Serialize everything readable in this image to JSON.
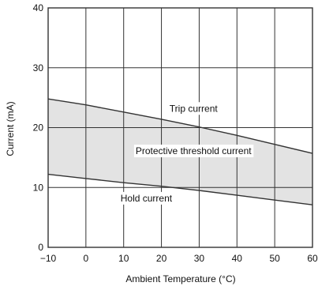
{
  "chart_data": {
    "type": "area",
    "title": "",
    "xlabel": "Ambient Temperature (°C)",
    "ylabel": "Current (mA)",
    "xlim": [
      -10,
      60
    ],
    "ylim": [
      0,
      40
    ],
    "x_ticks": [
      -10,
      0,
      10,
      20,
      30,
      40,
      50,
      60
    ],
    "x_tick_labels": [
      "−10",
      "0",
      "10",
      "20",
      "30",
      "40",
      "50",
      "60"
    ],
    "y_ticks": [
      0,
      10,
      20,
      30,
      40
    ],
    "y_tick_labels": [
      "0",
      "10",
      "20",
      "30",
      "40"
    ],
    "grid": true,
    "series": [
      {
        "name": "Trip current",
        "x": [
          -10,
          0,
          10,
          20,
          30,
          40,
          50,
          60
        ],
        "values": [
          24.8,
          23.8,
          22.6,
          21.4,
          20.1,
          18.7,
          17.2,
          15.7
        ]
      },
      {
        "name": "Hold current",
        "x": [
          -10,
          0,
          10,
          20,
          30,
          40,
          50,
          60
        ],
        "values": [
          12.2,
          11.5,
          10.8,
          10.2,
          9.5,
          8.7,
          7.9,
          7.1
        ]
      }
    ],
    "band": {
      "between": [
        "Trip current",
        "Hold current"
      ],
      "fill": "#e3e3e3"
    },
    "annotations": [
      {
        "text": "Trip current",
        "x": 28.5,
        "y": 23.2
      },
      {
        "text": "Protective threshold current",
        "x": 28.5,
        "y": 16.1
      },
      {
        "text": "Hold current",
        "x": 16,
        "y": 8.2
      }
    ],
    "colors": {
      "line": "#333333",
      "grid": "#333333",
      "frame": "#333333"
    }
  }
}
